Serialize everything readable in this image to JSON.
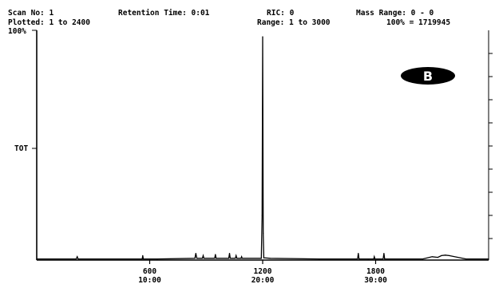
{
  "header": {
    "scan_no": "Scan No: 1",
    "retention_time": "Retention Time:  0:01",
    "ric": "RIC: 0",
    "mass_range": "Mass Range: 0 - 0",
    "plotted": "Plotted: 1 to 2400",
    "range": "Range: 1 to 3000",
    "full_scale": "100% = 1719945"
  },
  "badge": {
    "label": "B",
    "color": "#000000",
    "text_color": "#ffffff"
  },
  "chart_data": {
    "type": "line",
    "title": "",
    "xlabel": "",
    "ylabel": "TOT",
    "y_top_label": "100%",
    "xlim": [
      0,
      2400
    ],
    "ylim": [
      0,
      100
    ],
    "grid": false,
    "x_ticks": [
      {
        "value": 600,
        "scan": "600",
        "time": "10:00"
      },
      {
        "value": 1200,
        "scan": "1200",
        "time": "20:00"
      },
      {
        "value": 1800,
        "scan": "1800",
        "time": "30:00"
      }
    ],
    "series": [
      {
        "color": "#000000",
        "x": [
          0,
          210,
          215,
          220,
          560,
          563,
          566,
          600,
          640,
          840,
          845,
          850,
          880,
          884,
          888,
          945,
          949,
          953,
          1020,
          1024,
          1028,
          1055,
          1059,
          1063,
          1085,
          1088,
          1091,
          1193,
          1197,
          1200,
          1203,
          1206,
          1240,
          1500,
          1704,
          1708,
          1712,
          1760,
          1790,
          1793,
          1796,
          1840,
          1844,
          1848,
          2050,
          2100,
          2130,
          2150,
          2170,
          2190,
          2280,
          2400
        ],
        "y": [
          0.5,
          0.5,
          1.5,
          0.5,
          0.5,
          2,
          0.5,
          0.5,
          0.5,
          0.8,
          3,
          0.8,
          0.8,
          2,
          0.8,
          0.8,
          2.5,
          0.8,
          0.8,
          3,
          0.8,
          0.8,
          2,
          0.8,
          0.8,
          1.5,
          0.8,
          0.8,
          20,
          100,
          12,
          1,
          0.8,
          0.5,
          0.5,
          3,
          0.5,
          0.5,
          0.5,
          1.5,
          0.5,
          0.5,
          3,
          0.5,
          0.5,
          1.5,
          1.2,
          2,
          2.2,
          2,
          0.5,
          0.5
        ]
      }
    ]
  }
}
